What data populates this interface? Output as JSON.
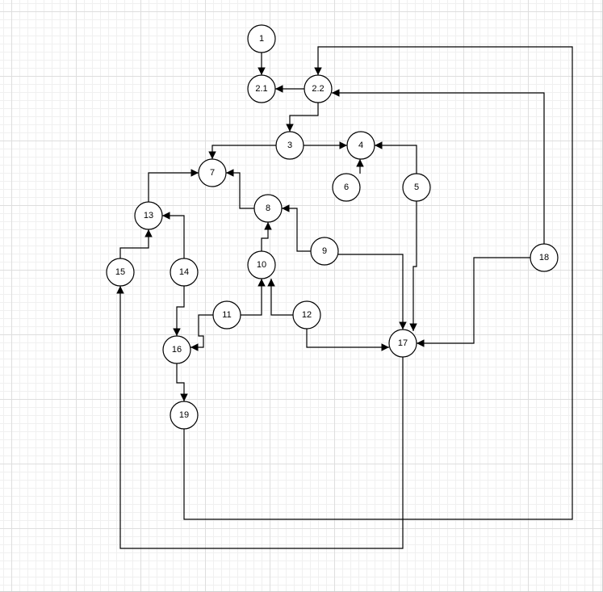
{
  "diagram": {
    "nodes": [
      {
        "id": "n1",
        "label": "1"
      },
      {
        "id": "n21",
        "label": "2.1"
      },
      {
        "id": "n22",
        "label": "2.2"
      },
      {
        "id": "n3",
        "label": "3"
      },
      {
        "id": "n4",
        "label": "4"
      },
      {
        "id": "n5",
        "label": "5"
      },
      {
        "id": "n6",
        "label": "6"
      },
      {
        "id": "n7",
        "label": "7"
      },
      {
        "id": "n8",
        "label": "8"
      },
      {
        "id": "n9",
        "label": "9"
      },
      {
        "id": "n10",
        "label": "10"
      },
      {
        "id": "n11",
        "label": "11"
      },
      {
        "id": "n12",
        "label": "12"
      },
      {
        "id": "n13",
        "label": "13"
      },
      {
        "id": "n14",
        "label": "14"
      },
      {
        "id": "n15",
        "label": "15"
      },
      {
        "id": "n16",
        "label": "16"
      },
      {
        "id": "n17",
        "label": "17"
      },
      {
        "id": "n18",
        "label": "18"
      },
      {
        "id": "n19",
        "label": "19"
      }
    ],
    "edges": [
      {
        "from": "n1",
        "to": "n21"
      },
      {
        "from": "n22",
        "to": "n21"
      },
      {
        "from": "n22",
        "to": "n3"
      },
      {
        "from": "n3",
        "to": "n4"
      },
      {
        "from": "n3",
        "to": "n7"
      },
      {
        "from": "n6",
        "to": "n4"
      },
      {
        "from": "n5",
        "to": "n4"
      },
      {
        "from": "n5",
        "to": "n17"
      },
      {
        "from": "n13",
        "to": "n7"
      },
      {
        "from": "n8",
        "to": "n7"
      },
      {
        "from": "n9",
        "to": "n8"
      },
      {
        "from": "n9",
        "to": "n17"
      },
      {
        "from": "n10",
        "to": "n8"
      },
      {
        "from": "n11",
        "to": "n10"
      },
      {
        "from": "n11",
        "to": "n16"
      },
      {
        "from": "n12",
        "to": "n10"
      },
      {
        "from": "n12",
        "to": "n17"
      },
      {
        "from": "n14",
        "to": "n13"
      },
      {
        "from": "n14",
        "to": "n16"
      },
      {
        "from": "n15",
        "to": "n13"
      },
      {
        "from": "n16",
        "to": "n19"
      },
      {
        "from": "n18",
        "to": "n22"
      },
      {
        "from": "n18",
        "to": "n17"
      },
      {
        "from": "n19",
        "to": "n22"
      },
      {
        "from": "n17",
        "to": "n15"
      }
    ]
  }
}
